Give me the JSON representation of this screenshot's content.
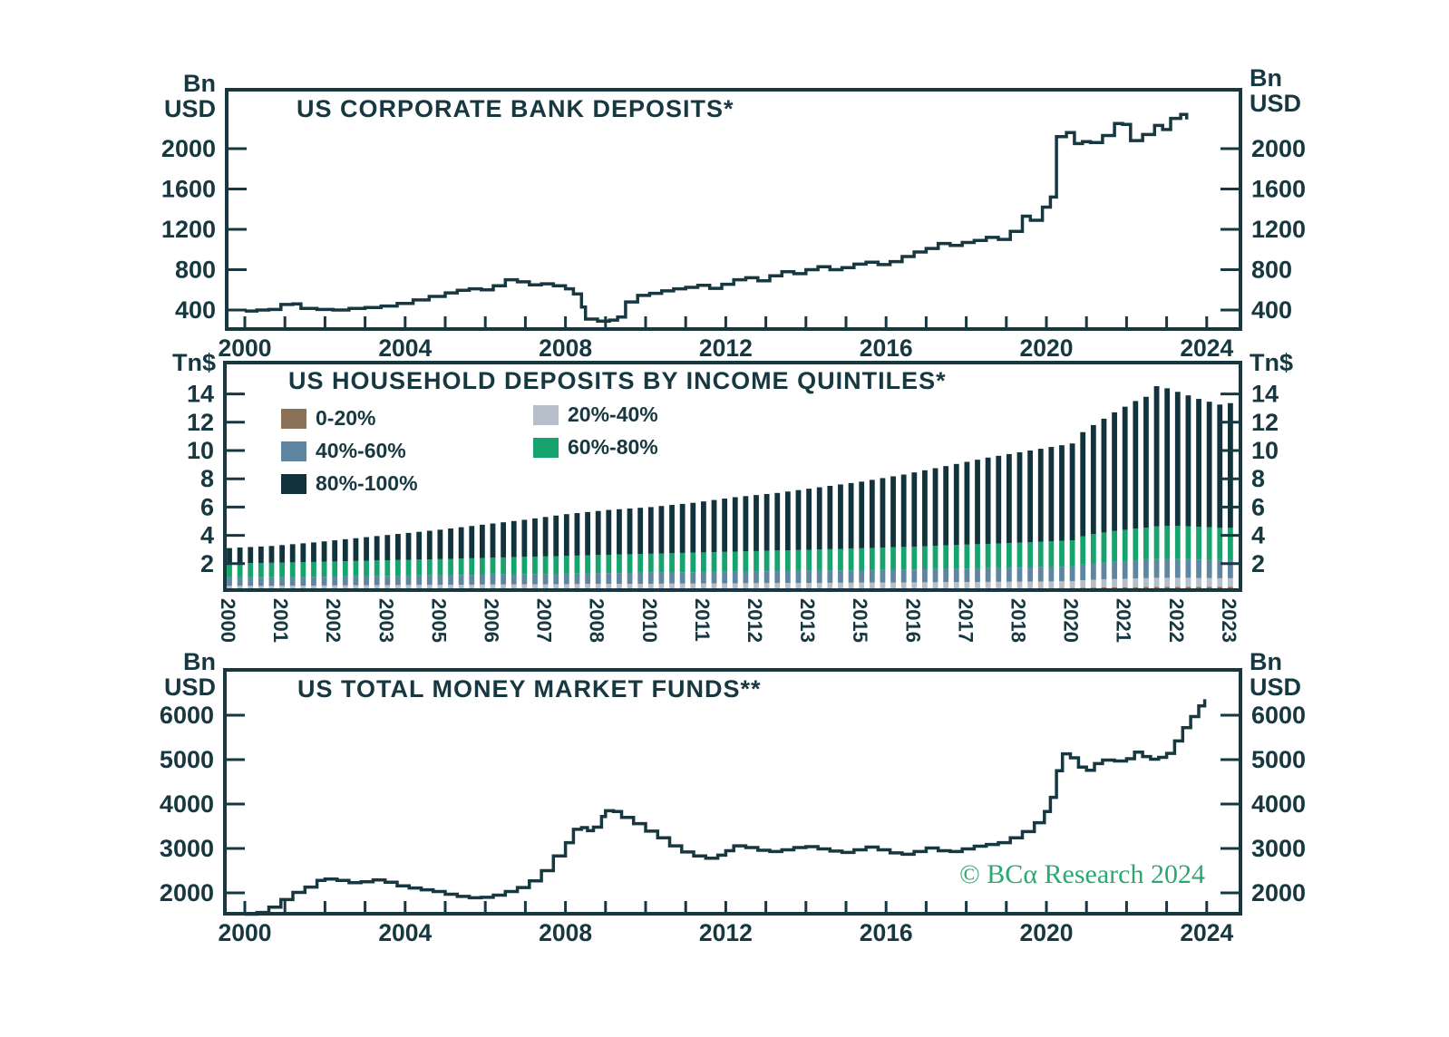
{
  "colors": {
    "ink": "#173840",
    "background": "#ffffff",
    "watermark_green": "#2ba873"
  },
  "watermark": {
    "text": "© BCα Research 2024"
  },
  "units": {
    "bn_line1": "Bn",
    "bn_line2": "USD",
    "tn": "Tn$"
  },
  "chart_data": [
    {
      "id": "us_corporate_bank_deposits",
      "type": "line",
      "title": "US CORPORATE BANK DEPOSITS*",
      "unit": "Bn USD",
      "line_color": "#173840",
      "y_ticks": [
        400,
        800,
        1200,
        1600,
        2000
      ],
      "x_ticks_labeled": [
        2000,
        2004,
        2008,
        2012,
        2016,
        2020,
        2024
      ],
      "x_minor_tick_every_years": 1,
      "points": [
        [
          2000.0,
          390
        ],
        [
          2000.3,
          400
        ],
        [
          2000.6,
          405
        ],
        [
          2000.9,
          455
        ],
        [
          2001.2,
          460
        ],
        [
          2001.4,
          415
        ],
        [
          2001.8,
          405
        ],
        [
          2002.2,
          400
        ],
        [
          2002.6,
          415
        ],
        [
          2003.0,
          425
        ],
        [
          2003.4,
          440
        ],
        [
          2003.8,
          465
        ],
        [
          2004.2,
          500
        ],
        [
          2004.6,
          535
        ],
        [
          2005.0,
          570
        ],
        [
          2005.3,
          595
        ],
        [
          2005.6,
          610
        ],
        [
          2005.9,
          600
        ],
        [
          2006.2,
          640
        ],
        [
          2006.5,
          700
        ],
        [
          2006.8,
          680
        ],
        [
          2007.1,
          650
        ],
        [
          2007.4,
          660
        ],
        [
          2007.7,
          640
        ],
        [
          2008.0,
          610
        ],
        [
          2008.2,
          560
        ],
        [
          2008.4,
          430
        ],
        [
          2008.5,
          310
        ],
        [
          2008.8,
          290
        ],
        [
          2009.1,
          300
        ],
        [
          2009.3,
          330
        ],
        [
          2009.5,
          480
        ],
        [
          2009.8,
          545
        ],
        [
          2010.1,
          565
        ],
        [
          2010.4,
          590
        ],
        [
          2010.7,
          610
        ],
        [
          2011.0,
          625
        ],
        [
          2011.3,
          645
        ],
        [
          2011.6,
          615
        ],
        [
          2011.9,
          655
        ],
        [
          2012.2,
          700
        ],
        [
          2012.5,
          720
        ],
        [
          2012.8,
          690
        ],
        [
          2013.1,
          740
        ],
        [
          2013.4,
          780
        ],
        [
          2013.7,
          760
        ],
        [
          2014.0,
          800
        ],
        [
          2014.3,
          830
        ],
        [
          2014.6,
          800
        ],
        [
          2014.9,
          820
        ],
        [
          2015.2,
          855
        ],
        [
          2015.5,
          875
        ],
        [
          2015.8,
          850
        ],
        [
          2016.1,
          880
        ],
        [
          2016.4,
          930
        ],
        [
          2016.7,
          975
        ],
        [
          2017.0,
          1010
        ],
        [
          2017.3,
          1060
        ],
        [
          2017.6,
          1040
        ],
        [
          2017.9,
          1070
        ],
        [
          2018.2,
          1090
        ],
        [
          2018.5,
          1120
        ],
        [
          2018.8,
          1100
        ],
        [
          2019.1,
          1180
        ],
        [
          2019.4,
          1330
        ],
        [
          2019.6,
          1290
        ],
        [
          2019.9,
          1420
        ],
        [
          2020.1,
          1520
        ],
        [
          2020.25,
          2120
        ],
        [
          2020.5,
          2160
        ],
        [
          2020.7,
          2050
        ],
        [
          2020.9,
          2070
        ],
        [
          2021.1,
          2060
        ],
        [
          2021.4,
          2130
        ],
        [
          2021.7,
          2250
        ],
        [
          2021.9,
          2240
        ],
        [
          2022.1,
          2080
        ],
        [
          2022.4,
          2140
        ],
        [
          2022.7,
          2230
        ],
        [
          2022.9,
          2190
        ],
        [
          2023.1,
          2300
        ],
        [
          2023.35,
          2340
        ],
        [
          2023.5,
          2290
        ]
      ]
    },
    {
      "id": "us_household_deposits_by_income_quintiles",
      "type": "stacked_bar",
      "title": "US HOUSEHOLD DEPOSITS BY INCOME QUINTILES*",
      "unit": "Tn$",
      "y_ticks": [
        2,
        4,
        6,
        8,
        10,
        12,
        14
      ],
      "bar_count": 96,
      "start_year": 2000,
      "bar_period_years": 0.25,
      "x_label_every_bars": 5,
      "x_tick_labels": [
        "2000",
        "2001",
        "2002",
        "2003",
        "2005",
        "2006",
        "2007",
        "2008",
        "2010",
        "2011",
        "2012",
        "2013",
        "2015",
        "2016",
        "2017",
        "2018",
        "2020",
        "2021",
        "2022",
        "2023"
      ],
      "legend": [
        {
          "label": "0-20%",
          "color": "#8b7157"
        },
        {
          "label": "20%-40%",
          "color": "#b6bfc9"
        },
        {
          "label": "40%-60%",
          "color": "#5f86a0"
        },
        {
          "label": "60%-80%",
          "color": "#17a36e"
        },
        {
          "label": "80%-100%",
          "color": "#13333c"
        }
      ],
      "anchor_years": [
        2000,
        2001,
        2002,
        2003,
        2004,
        2005,
        2006,
        2007,
        2008,
        2009,
        2010,
        2011,
        2012,
        2013,
        2014,
        2015,
        2016,
        2017,
        2018,
        2019,
        2020,
        2020.25,
        2020.5,
        2021,
        2021.5,
        2021.75,
        2022,
        2022.25,
        2022.5,
        2022.75,
        2023,
        2023.25,
        2023.5,
        2023.75
      ],
      "series": [
        {
          "name": "0-20%",
          "color": "#8b7157",
          "values": [
            0.15,
            0.15,
            0.16,
            0.17,
            0.18,
            0.18,
            0.19,
            0.2,
            0.2,
            0.21,
            0.21,
            0.22,
            0.22,
            0.23,
            0.23,
            0.24,
            0.24,
            0.25,
            0.26,
            0.27,
            0.28,
            0.3,
            0.31,
            0.33,
            0.34,
            0.35,
            0.36,
            0.36,
            0.36,
            0.36,
            0.35,
            0.35,
            0.35,
            0.35
          ]
        },
        {
          "name": "20%-40%",
          "color": "#b6bfc9",
          "values": [
            0.28,
            0.28,
            0.29,
            0.3,
            0.31,
            0.32,
            0.33,
            0.34,
            0.35,
            0.36,
            0.37,
            0.38,
            0.39,
            0.4,
            0.41,
            0.42,
            0.43,
            0.44,
            0.45,
            0.46,
            0.48,
            0.52,
            0.55,
            0.58,
            0.61,
            0.62,
            0.64,
            0.64,
            0.64,
            0.64,
            0.63,
            0.63,
            0.62,
            0.62
          ]
        },
        {
          "name": "40%-60%",
          "color": "#5f86a0",
          "values": [
            0.6,
            0.61,
            0.62,
            0.64,
            0.66,
            0.68,
            0.7,
            0.72,
            0.74,
            0.76,
            0.78,
            0.8,
            0.82,
            0.84,
            0.86,
            0.88,
            0.91,
            0.94,
            0.97,
            1.0,
            1.04,
            1.12,
            1.16,
            1.22,
            1.27,
            1.29,
            1.32,
            1.33,
            1.33,
            1.32,
            1.31,
            1.3,
            1.28,
            1.28
          ]
        },
        {
          "name": "60%-80%",
          "color": "#17a36e",
          "values": [
            1.0,
            1.02,
            1.05,
            1.08,
            1.11,
            1.14,
            1.18,
            1.22,
            1.26,
            1.3,
            1.34,
            1.38,
            1.42,
            1.46,
            1.5,
            1.55,
            1.6,
            1.66,
            1.72,
            1.78,
            1.85,
            2.0,
            2.08,
            2.18,
            2.26,
            2.29,
            2.32,
            2.33,
            2.33,
            2.32,
            2.31,
            2.3,
            2.28,
            2.28
          ]
        },
        {
          "name": "80%-100%",
          "color": "#13333c",
          "values": [
            1.07,
            1.19,
            1.38,
            1.61,
            1.84,
            2.08,
            2.35,
            2.62,
            2.95,
            3.17,
            3.3,
            3.52,
            3.85,
            4.07,
            4.4,
            4.71,
            5.12,
            5.61,
            6.1,
            6.49,
            6.85,
            7.36,
            7.7,
            8.39,
            9.02,
            9.25,
            9.91,
            9.74,
            9.49,
            9.26,
            9.05,
            8.87,
            8.72,
            8.82
          ]
        }
      ]
    },
    {
      "id": "us_total_money_market_funds",
      "type": "line",
      "title": "US TOTAL MONEY MARKET FUNDS**",
      "unit": "Bn USD",
      "line_color": "#173840",
      "y_ticks": [
        2000,
        3000,
        4000,
        5000,
        6000
      ],
      "x_ticks_labeled": [
        2000,
        2004,
        2008,
        2012,
        2016,
        2020,
        2024
      ],
      "x_minor_tick_every_years": 1,
      "points": [
        [
          2000.0,
          1520
        ],
        [
          2000.3,
          1560
        ],
        [
          2000.6,
          1680
        ],
        [
          2000.9,
          1850
        ],
        [
          2001.2,
          2010
        ],
        [
          2001.5,
          2130
        ],
        [
          2001.8,
          2280
        ],
        [
          2002.0,
          2310
        ],
        [
          2002.3,
          2280
        ],
        [
          2002.6,
          2230
        ],
        [
          2002.9,
          2250
        ],
        [
          2003.2,
          2290
        ],
        [
          2003.5,
          2240
        ],
        [
          2003.8,
          2160
        ],
        [
          2004.1,
          2110
        ],
        [
          2004.4,
          2070
        ],
        [
          2004.7,
          2030
        ],
        [
          2005.0,
          1970
        ],
        [
          2005.3,
          1920
        ],
        [
          2005.6,
          1890
        ],
        [
          2005.9,
          1900
        ],
        [
          2006.2,
          1950
        ],
        [
          2006.5,
          2030
        ],
        [
          2006.8,
          2120
        ],
        [
          2007.1,
          2270
        ],
        [
          2007.4,
          2500
        ],
        [
          2007.7,
          2830
        ],
        [
          2008.0,
          3130
        ],
        [
          2008.2,
          3430
        ],
        [
          2008.4,
          3470
        ],
        [
          2008.55,
          3400
        ],
        [
          2008.7,
          3480
        ],
        [
          2008.9,
          3720
        ],
        [
          2009.0,
          3850
        ],
        [
          2009.2,
          3830
        ],
        [
          2009.4,
          3700
        ],
        [
          2009.7,
          3560
        ],
        [
          2010.0,
          3390
        ],
        [
          2010.3,
          3240
        ],
        [
          2010.6,
          3060
        ],
        [
          2010.9,
          2920
        ],
        [
          2011.2,
          2830
        ],
        [
          2011.5,
          2780
        ],
        [
          2011.8,
          2850
        ],
        [
          2012.0,
          2950
        ],
        [
          2012.2,
          3060
        ],
        [
          2012.5,
          3020
        ],
        [
          2012.8,
          2960
        ],
        [
          2013.1,
          2930
        ],
        [
          2013.4,
          2970
        ],
        [
          2013.7,
          3020
        ],
        [
          2014.0,
          3040
        ],
        [
          2014.3,
          2990
        ],
        [
          2014.6,
          2940
        ],
        [
          2014.9,
          2910
        ],
        [
          2015.2,
          2970
        ],
        [
          2015.5,
          3030
        ],
        [
          2015.8,
          2970
        ],
        [
          2016.1,
          2900
        ],
        [
          2016.4,
          2870
        ],
        [
          2016.7,
          2930
        ],
        [
          2017.0,
          3010
        ],
        [
          2017.3,
          2950
        ],
        [
          2017.6,
          2930
        ],
        [
          2017.9,
          2990
        ],
        [
          2018.2,
          3050
        ],
        [
          2018.5,
          3090
        ],
        [
          2018.8,
          3130
        ],
        [
          2019.1,
          3240
        ],
        [
          2019.4,
          3380
        ],
        [
          2019.7,
          3580
        ],
        [
          2019.95,
          3830
        ],
        [
          2020.1,
          4150
        ],
        [
          2020.25,
          4750
        ],
        [
          2020.4,
          5130
        ],
        [
          2020.6,
          5040
        ],
        [
          2020.8,
          4830
        ],
        [
          2021.0,
          4760
        ],
        [
          2021.2,
          4910
        ],
        [
          2021.4,
          4990
        ],
        [
          2021.7,
          4970
        ],
        [
          2022.0,
          5020
        ],
        [
          2022.2,
          5170
        ],
        [
          2022.4,
          5070
        ],
        [
          2022.6,
          5010
        ],
        [
          2022.8,
          5050
        ],
        [
          2023.0,
          5140
        ],
        [
          2023.2,
          5420
        ],
        [
          2023.4,
          5720
        ],
        [
          2023.6,
          5970
        ],
        [
          2023.8,
          6210
        ],
        [
          2023.95,
          6360
        ]
      ]
    }
  ]
}
